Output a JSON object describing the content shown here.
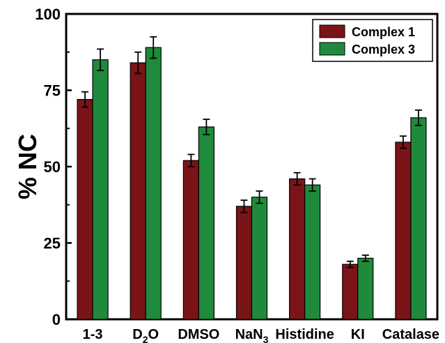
{
  "chart_data": {
    "type": "bar",
    "ylabel": "% NC",
    "xlabel": "",
    "ylim": [
      0,
      100
    ],
    "yticks": [
      0,
      25,
      50,
      75,
      100
    ],
    "categories": [
      {
        "main": "1-3",
        "sub": "",
        "tail": ""
      },
      {
        "main": "D",
        "sub": "2",
        "tail": "O"
      },
      {
        "main": "DMSO",
        "sub": "",
        "tail": ""
      },
      {
        "main": "NaN",
        "sub": "3",
        "tail": ""
      },
      {
        "main": "Histidine",
        "sub": "",
        "tail": ""
      },
      {
        "main": "KI",
        "sub": "",
        "tail": ""
      },
      {
        "main": "Catalase",
        "sub": "",
        "tail": ""
      }
    ],
    "series": [
      {
        "name": "Complex 1",
        "color": "#7b1416",
        "values": [
          72,
          84,
          52,
          37,
          46,
          18,
          58
        ],
        "errors": [
          2.5,
          3.5,
          2,
          2,
          2,
          1,
          2
        ]
      },
      {
        "name": "Complex 3",
        "color": "#1f8a3c",
        "values": [
          85,
          89,
          63,
          40,
          44,
          20,
          66
        ],
        "errors": [
          3.5,
          3.5,
          2.5,
          2,
          2,
          1,
          2.5
        ]
      }
    ],
    "legend": "top-right",
    "grid": false
  }
}
